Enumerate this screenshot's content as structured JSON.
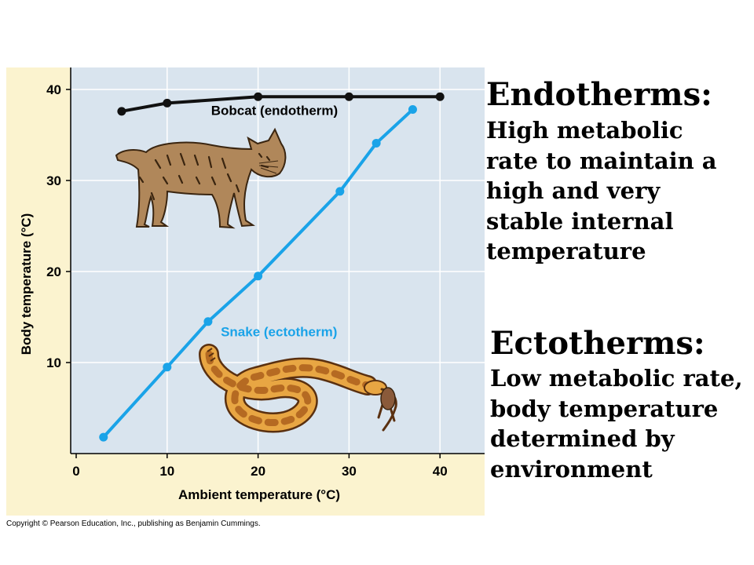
{
  "chart_data": {
    "type": "line",
    "xlabel": "Ambient temperature (°C)",
    "ylabel": "Body temperature (°C)",
    "xlim": [
      0,
      45
    ],
    "ylim": [
      0,
      42
    ],
    "x_ticks": [
      "0",
      "10",
      "20",
      "30",
      "40"
    ],
    "y_ticks": [
      "10",
      "20",
      "30",
      "40"
    ],
    "grid": true,
    "series": [
      {
        "name": "Bobcat (endotherm)",
        "color": "#111111",
        "x": [
          5,
          10,
          20,
          30,
          40
        ],
        "y": [
          37.6,
          38.5,
          39.2,
          39.2,
          39.2
        ]
      },
      {
        "name": "Snake (ectotherm)",
        "color": "#1aa3e8",
        "x": [
          3,
          10,
          14.5,
          20,
          29,
          33,
          37
        ],
        "y": [
          1.8,
          9.5,
          14.5,
          19.5,
          28.8,
          34.1,
          37.8
        ]
      }
    ]
  },
  "copyright": "Copyright © Pearson Education, Inc., publishing as Benjamin Cummings.",
  "endotherms": {
    "heading": "Endotherms:",
    "lines": [
      "High metabolic",
      "rate to maintain a",
      "high and very",
      "stable internal",
      "temperature"
    ]
  },
  "ectotherms": {
    "heading": "Ectotherms:",
    "lines": [
      "Low metabolic rate,",
      "body temperature",
      "determined by",
      "environment"
    ]
  },
  "illustrations": [
    "bobcat",
    "snake-eating-mouse"
  ]
}
